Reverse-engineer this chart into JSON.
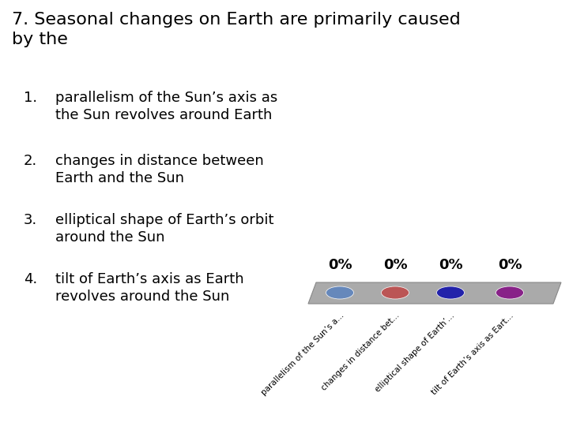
{
  "title": "7. Seasonal changes on Earth are primarily caused\nby the",
  "title_fontsize": 16,
  "background_color": "#ffffff",
  "items": [
    {
      "num": "1.",
      "line1": "parallelism of the Sun’s axis as",
      "line2": "the Sun revolves around Earth"
    },
    {
      "num": "2.",
      "line1": "changes in distance between",
      "line2": "Earth and the Sun"
    },
    {
      "num": "3.",
      "line1": "elliptical shape of Earth’s orbit",
      "line2": "around the Sun"
    },
    {
      "num": "4.",
      "line1": "tilt of Earth’s axis as Earth",
      "line2": "revolves around the Sun"
    }
  ],
  "items_fontsize": 13,
  "percentages": [
    "0%",
    "0%",
    "0%",
    "0%"
  ],
  "pct_fontsize": 13,
  "dot_colors": [
    "#6688bb",
    "#bb5555",
    "#2222aa",
    "#882288"
  ],
  "tick_labels": [
    "parallelism of the Sun’s a...",
    "changes in distance bet...",
    "elliptical shape of Earth’...",
    "tilt of Earth’s axis as Eart..."
  ],
  "tick_label_fontsize": 7.5,
  "bar_color": "#aaaaaa",
  "bar_edge_color": "#888888"
}
